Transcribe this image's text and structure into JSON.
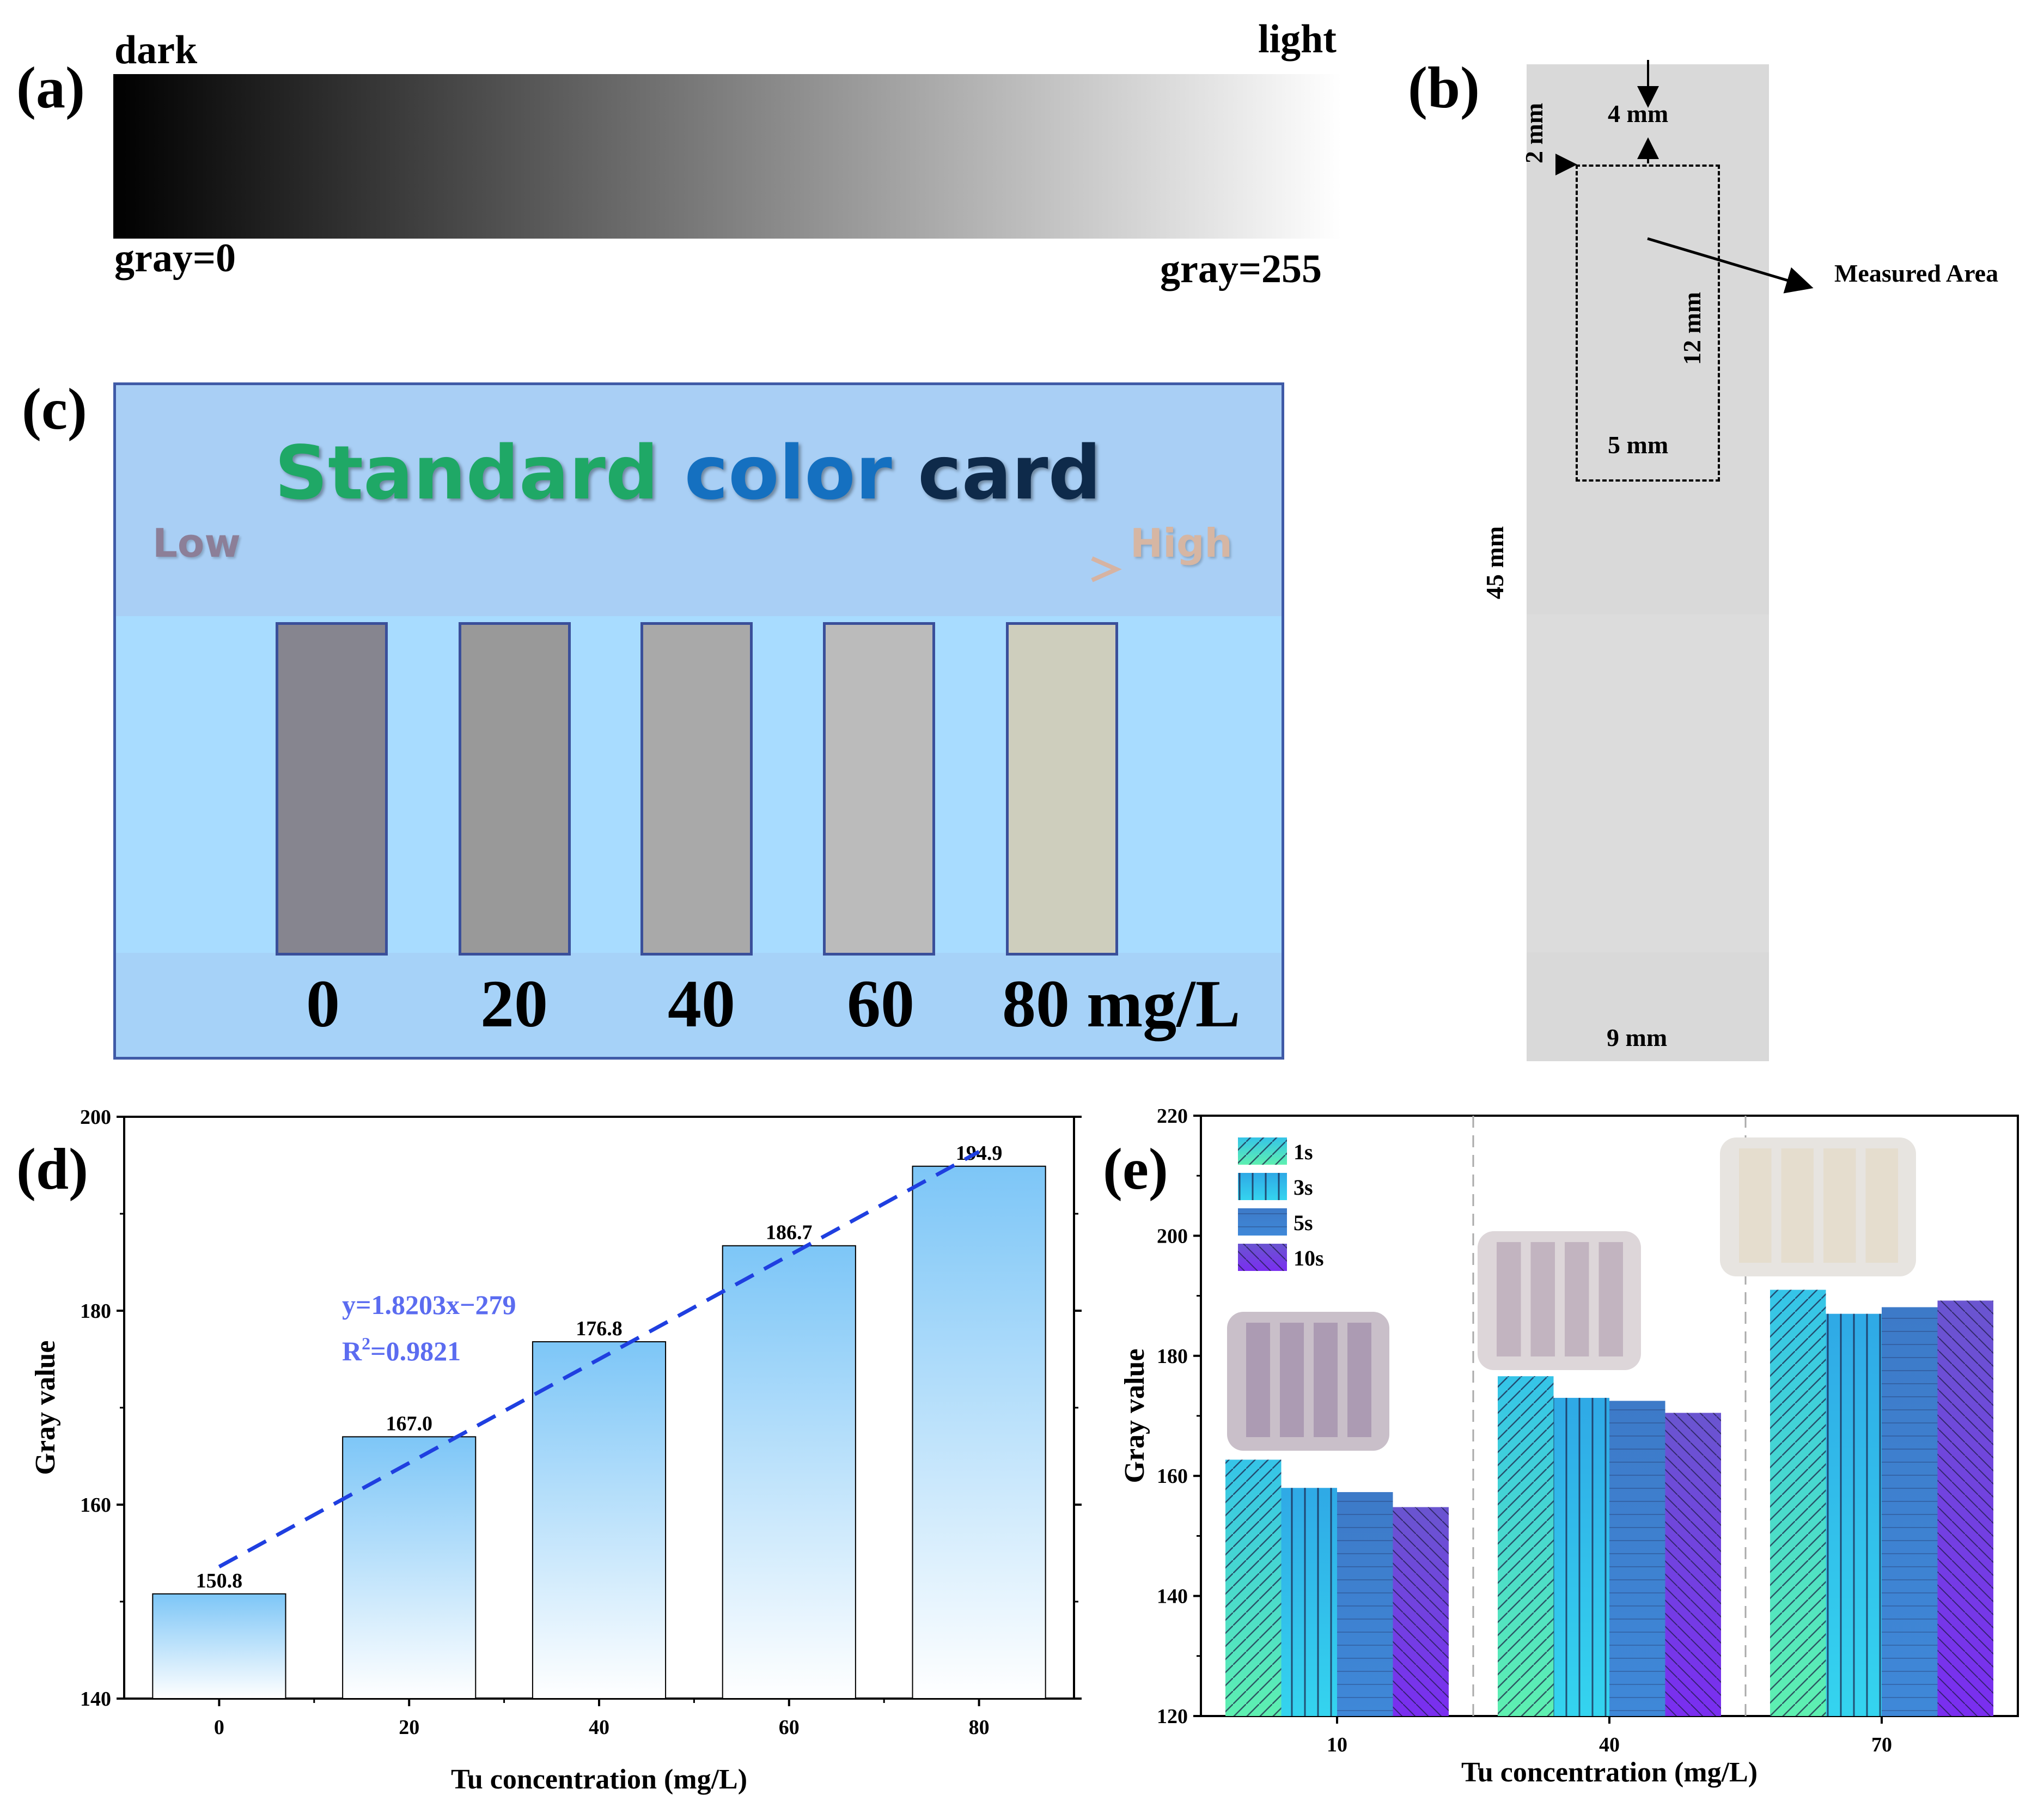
{
  "panels": {
    "a": {
      "letter": "(a)",
      "dark": "dark",
      "light": "light",
      "gray_min": "gray=0",
      "gray_max": "gray=255"
    },
    "b": {
      "letter": "(b)",
      "dim_top": "4 mm",
      "dim_side": "2 mm",
      "dim_height": "12 mm",
      "dim_width": "5 mm",
      "dim_total_height": "45 mm",
      "dim_total_width": "9 mm",
      "measured_area": "Measured Area"
    },
    "c": {
      "letter": "(c)",
      "title_part1": "Standard",
      "title_part2": "color",
      "title_part3": "card",
      "low": "Low",
      "high": "High",
      "swatch_colors": [
        "#86858f",
        "#999999",
        "#a9a9a9",
        "#bbbbbb",
        "#cecebd"
      ],
      "labels": [
        "0",
        "20",
        "40",
        "60",
        "80 mg/L"
      ]
    },
    "d": {
      "letter": "(d)"
    },
    "e": {
      "letter": "(e)"
    }
  },
  "chart_data": [
    {
      "id": "d",
      "type": "bar",
      "categories": [
        "0",
        "20",
        "40",
        "60",
        "80"
      ],
      "values": [
        150.8,
        167.0,
        176.8,
        186.7,
        194.9
      ],
      "value_labels": [
        "150.8",
        "167.0",
        "176.8",
        "186.7",
        "194.9"
      ],
      "xlabel": "Tu concentration (mg/L)",
      "ylabel": "Gray value",
      "ylim": [
        140,
        200
      ],
      "yticks": [
        "140",
        "160",
        "180",
        "200"
      ],
      "fit": {
        "equation": "y=1.8203x−279",
        "r2_prefix": "R",
        "r2_sup": "2",
        "r2_suffix": "=0.9821",
        "slope": 1.8203,
        "intercept": -279,
        "x_start": 0,
        "x_end": 80,
        "y_start": 153.6,
        "y_end": 196.4
      },
      "bar_color_top": "#7dc6f7",
      "bar_color_bottom": "#ffffff",
      "fit_color": "#1f3fe0"
    },
    {
      "id": "e",
      "type": "bar",
      "categories": [
        "10",
        "40",
        "70"
      ],
      "series": [
        {
          "name": "1s",
          "values": [
            162.7,
            176.6,
            191.0
          ]
        },
        {
          "name": "3s",
          "values": [
            158.0,
            173.0,
            187.0
          ]
        },
        {
          "name": "5s",
          "values": [
            157.3,
            172.5,
            188.1
          ]
        },
        {
          "name": "10s",
          "values": [
            154.8,
            170.5,
            189.2
          ]
        }
      ],
      "xlabel": "Tu concentration (mg/L)",
      "ylabel": "Gray value",
      "ylim": [
        120,
        220
      ],
      "yticks": [
        "120",
        "140",
        "160",
        "180",
        "200",
        "220"
      ],
      "legend": "top-left",
      "series_colors_top": [
        "#35c4e8",
        "#2fa9e6",
        "#3d7ac8",
        "#6a55d0"
      ],
      "series_colors_bottom": [
        "#5ef0b0",
        "#34d4ef",
        "#3f88d8",
        "#7a2ef0"
      ]
    }
  ]
}
